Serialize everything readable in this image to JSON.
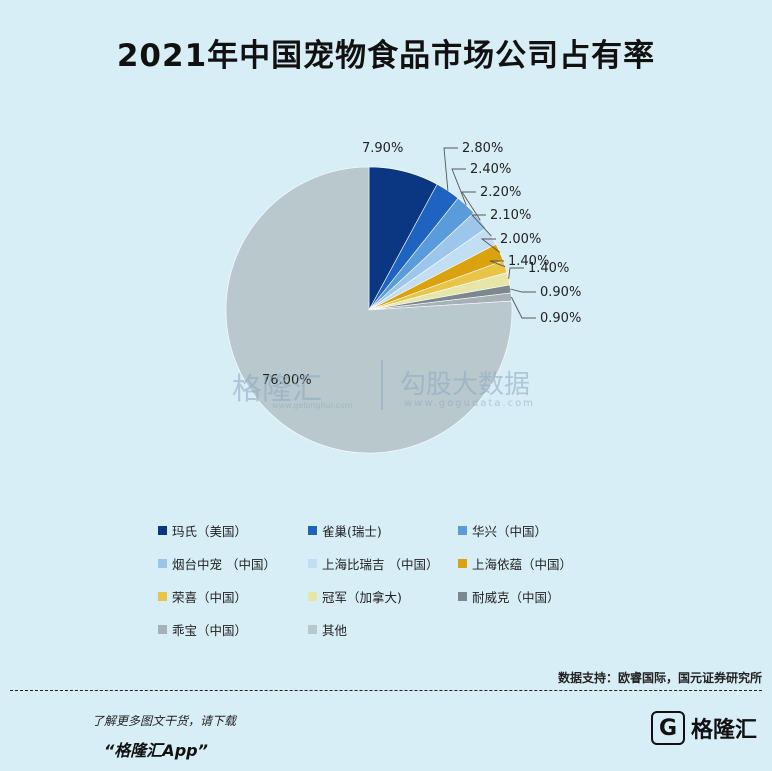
{
  "title": "2021年中国宠物食品市场公司占有率",
  "chart_data": {
    "type": "pie",
    "title": "2021年中国宠物食品市场公司占有率",
    "labels": [
      "玛氏（美国）",
      "雀巢(瑞士)",
      "华兴（中国）",
      "烟台中宠 （中国）",
      "上海比瑞吉 （中国）",
      "上海依蕴（中国）",
      "荣喜（中国）",
      "冠军（加拿大)",
      "耐威克（中国）",
      "乖宝（中国）",
      "其他"
    ],
    "values": [
      7.9,
      2.8,
      2.4,
      2.2,
      2.1,
      2.0,
      1.4,
      1.4,
      0.9,
      0.9,
      76.0
    ],
    "value_labels": [
      "7.90%",
      "2.80%",
      "2.40%",
      "2.20%",
      "2.10%",
      "2.00%",
      "1.40%",
      "1.40%",
      "0.90%",
      "0.90%",
      "76.00%"
    ],
    "colors": [
      "#0a3682",
      "#1f63c0",
      "#5a9bdc",
      "#9cc6ec",
      "#c2def5",
      "#d9a20e",
      "#e8c547",
      "#e6e6a8",
      "#7c878e",
      "#a5b0b7",
      "#b9c8cd"
    ],
    "start_angle": "12 o'clock, clockwise",
    "legend_position": "bottom"
  },
  "watermark": {
    "left_text": "格隆汇",
    "left_sub": "www.gelonghui.com",
    "right_text": "勾股大数据",
    "right_sub": "www.gogudata.com"
  },
  "source": "数据支持：欧睿国际，国元证券研究所",
  "promo": {
    "line1": "了解更多图文干货，请下载",
    "line2": "“格隆汇App”"
  },
  "footer_logo": {
    "mark": "G",
    "text": "格隆汇"
  }
}
